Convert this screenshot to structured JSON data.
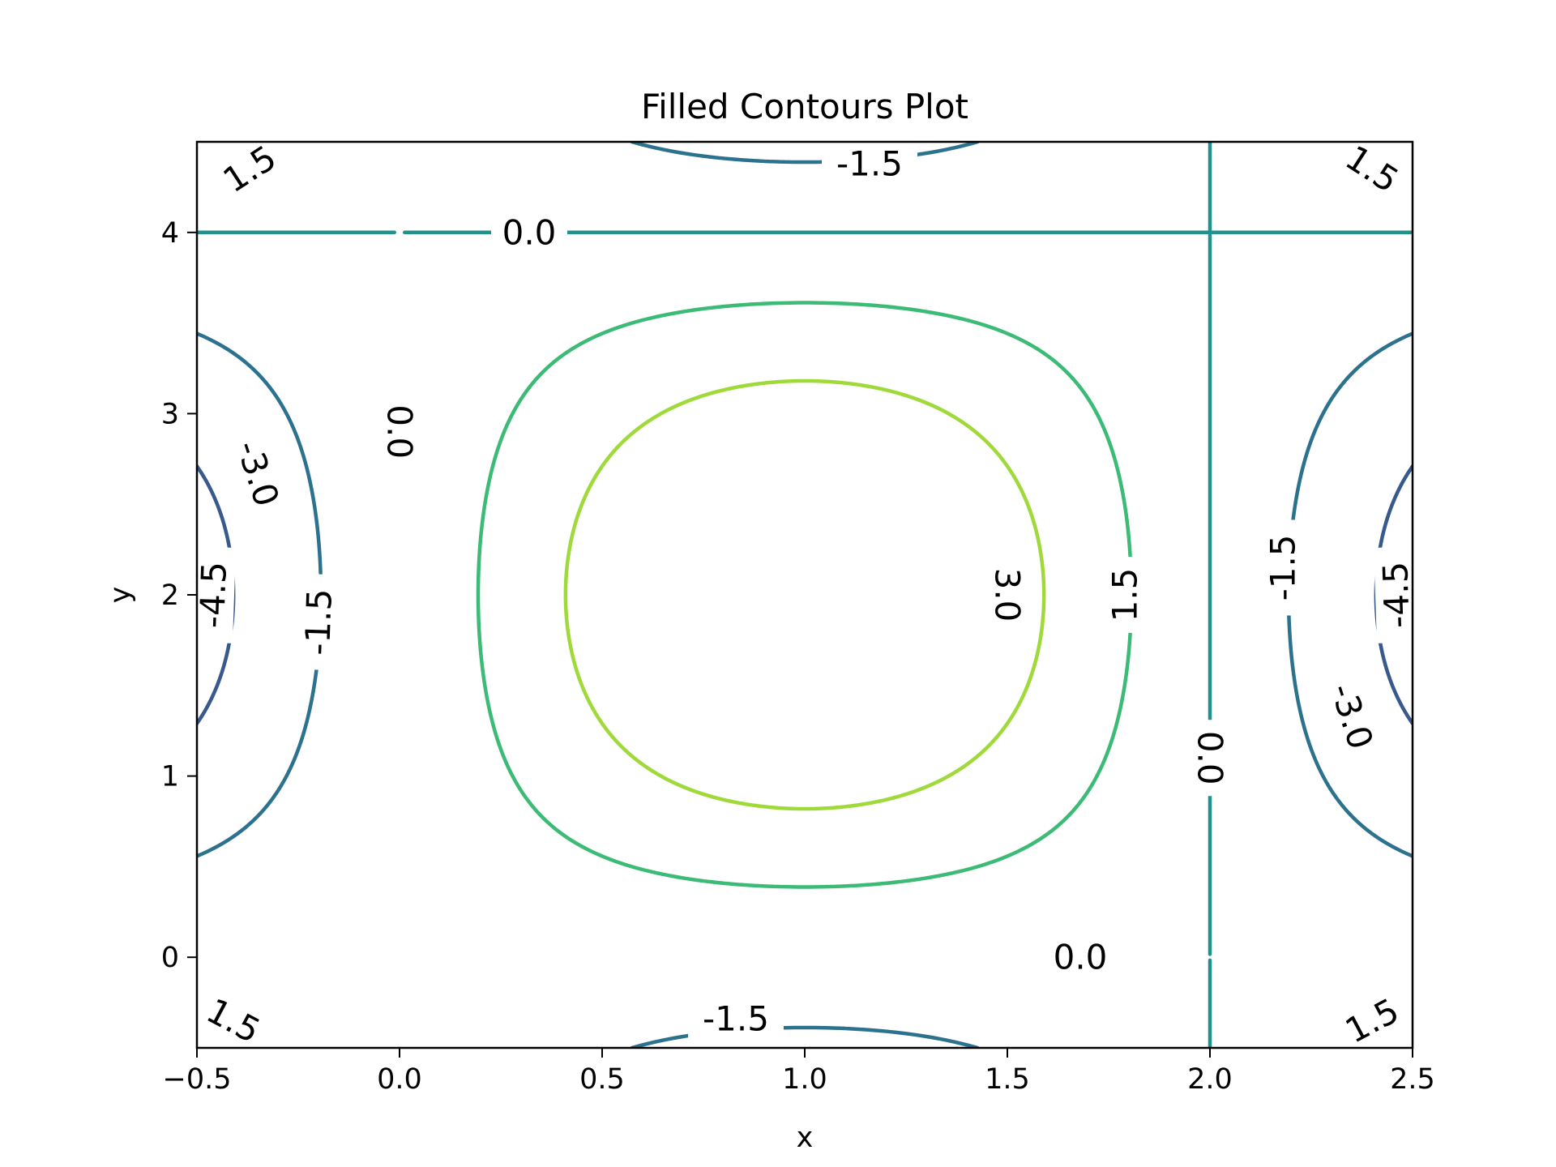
{
  "chart_data": {
    "type": "contour",
    "title": "Filled Contours Plot",
    "xlabel": "x",
    "ylabel": "y",
    "xlim": [
      -0.5,
      2.5
    ],
    "ylim": [
      -0.5,
      4.5
    ],
    "xticks": [
      -0.5,
      0.0,
      0.5,
      1.0,
      1.5,
      2.0,
      2.5
    ],
    "xtick_labels": [
      "−0.5",
      "0.0",
      "0.5",
      "1.0",
      "1.5",
      "2.0",
      "2.5"
    ],
    "yticks": [
      0,
      1,
      2,
      3,
      4
    ],
    "ytick_labels": [
      "0",
      "1",
      "2",
      "3",
      "4"
    ],
    "grid": false,
    "colormap": "viridis",
    "levels": [
      {
        "value": -4.5,
        "color": "#433e85"
      },
      {
        "value": -3.0,
        "color": "#38598c"
      },
      {
        "value": -1.5,
        "color": "#2c728e"
      },
      {
        "value": 0.0,
        "color": "#21918c"
      },
      {
        "value": 1.5,
        "color": "#3bbb75"
      },
      {
        "value": 3.0,
        "color": "#9fda3a"
      }
    ],
    "contour_labels": [
      {
        "text": "1.5",
        "x": -0.37,
        "y": 4.35,
        "angle": -33
      },
      {
        "text": "-1.5",
        "x": 1.16,
        "y": 4.38,
        "angle": 0
      },
      {
        "text": "1.5",
        "x": 2.4,
        "y": 4.35,
        "angle": 33
      },
      {
        "text": "0.0",
        "x": 0.32,
        "y": 4.0,
        "angle": 0
      },
      {
        "text": "0.0",
        "x": 0.0,
        "y": 2.9,
        "angle": 90
      },
      {
        "text": "-3.0",
        "x": -0.35,
        "y": 2.67,
        "angle": 72
      },
      {
        "text": "-4.5",
        "x": -0.46,
        "y": 2.0,
        "angle": -88
      },
      {
        "text": "-1.5",
        "x": -0.2,
        "y": 1.85,
        "angle": -88
      },
      {
        "text": "3.0",
        "x": 1.5,
        "y": 2.0,
        "angle": 90
      },
      {
        "text": "1.5",
        "x": 1.79,
        "y": 2.0,
        "angle": -90
      },
      {
        "text": "-1.5",
        "x": 2.18,
        "y": 2.15,
        "angle": -90
      },
      {
        "text": "-4.5",
        "x": 2.46,
        "y": 2.0,
        "angle": -92
      },
      {
        "text": "-3.0",
        "x": 2.35,
        "y": 1.33,
        "angle": 72
      },
      {
        "text": "0.0",
        "x": 2.0,
        "y": 1.1,
        "angle": 90
      },
      {
        "text": "0.0",
        "x": 1.68,
        "y": 0.0,
        "angle": 0
      },
      {
        "text": "-1.5",
        "x": 0.83,
        "y": -0.34,
        "angle": 0
      },
      {
        "text": "1.5",
        "x": -0.41,
        "y": -0.35,
        "angle": 28
      },
      {
        "text": "1.5",
        "x": 2.4,
        "y": -0.35,
        "angle": -28
      }
    ]
  }
}
